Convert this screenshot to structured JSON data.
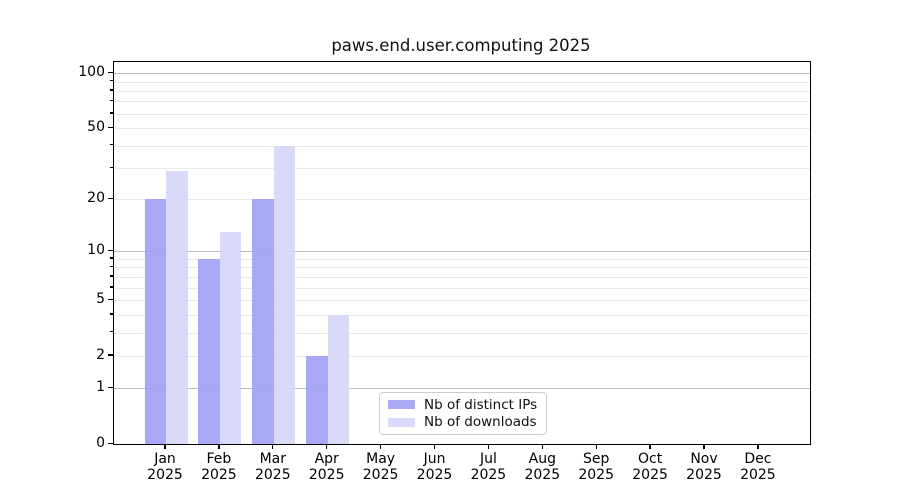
{
  "chart_data": {
    "type": "bar",
    "title": "paws.end.user.computing 2025",
    "categories": [
      "Jan 2025",
      "Feb 2025",
      "Mar 2025",
      "Apr 2025",
      "May 2025",
      "Jun 2025",
      "Jul 2025",
      "Aug 2025",
      "Sep 2025",
      "Oct 2025",
      "Nov 2025",
      "Dec 2025"
    ],
    "series": [
      {
        "name": "Nb of distinct IPs",
        "color": "#a9a9f7",
        "fill_rgba": "rgba(159,159,246,0.9)",
        "values": [
          20,
          9,
          20,
          2,
          0,
          0,
          0,
          0,
          0,
          0,
          0,
          0
        ]
      },
      {
        "name": "Nb of downloads",
        "color": "#d9d9f9",
        "fill_rgba": "rgba(213,213,248,0.9)",
        "values": [
          29,
          13,
          40,
          4,
          0,
          0,
          0,
          0,
          0,
          0,
          0,
          0
        ]
      }
    ],
    "xlabel": "",
    "ylabel": "",
    "yscale": "log1p",
    "ylim": [
      0,
      115
    ],
    "yticks_labeled": [
      0,
      1,
      2,
      5,
      10,
      20,
      50,
      100
    ],
    "yticks_major_grid": [
      1,
      10,
      100
    ],
    "yticks_minor_grid": [
      2,
      3,
      4,
      5,
      6,
      7,
      8,
      9,
      20,
      30,
      40,
      50,
      60,
      70,
      80,
      90
    ],
    "grid": true,
    "legend_position": "lower center",
    "colors": {
      "major_grid": "#bdbdbd",
      "minor_grid": "#eaeaea",
      "axis": "#000000",
      "text": "#111111",
      "background": "#ffffff"
    }
  }
}
